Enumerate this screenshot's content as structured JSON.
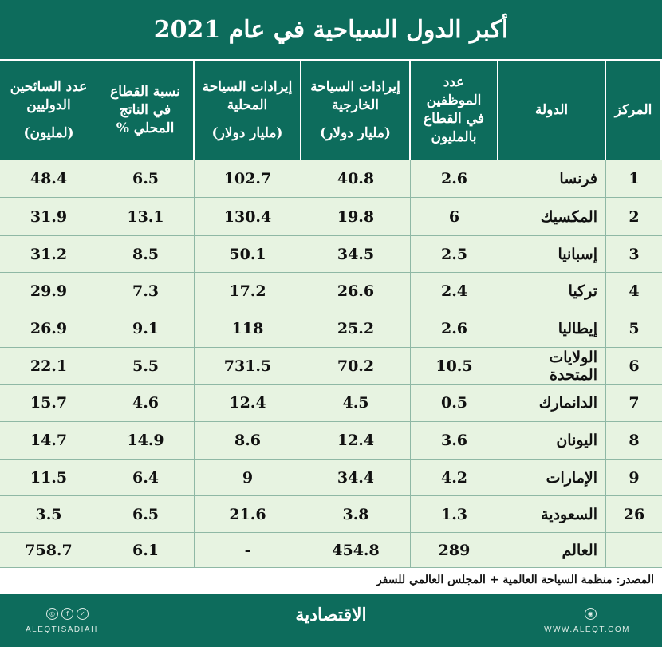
{
  "title": "أكبر الدول السياحية في عام 2021",
  "columns": {
    "rank": [
      "المركز"
    ],
    "country": [
      "الدولة"
    ],
    "employees": [
      "عدد",
      "الموظفين",
      "في القطاع",
      "بالمليون"
    ],
    "foreign_rev": [
      "إيرادات السياحة",
      "الخارجية"
    ],
    "foreign_rev_unit": "(مليار دولار)",
    "domestic_rev": [
      "إيرادات السياحة",
      "المحلية"
    ],
    "domestic_rev_unit": "(مليار دولار)",
    "gdp_share": [
      "نسبة القطاع",
      "في الناتج",
      "المحلي %"
    ],
    "tourists": [
      "عدد السائحين",
      "الدوليين"
    ],
    "tourists_unit": "(لمليون)"
  },
  "rows": [
    {
      "rank": "1",
      "country": "فرنسا",
      "employees": "2.6",
      "foreign_rev": "40.8",
      "domestic_rev": "102.7",
      "gdp_share": "6.5",
      "tourists": "48.4"
    },
    {
      "rank": "2",
      "country": "المكسيك",
      "employees": "6",
      "foreign_rev": "19.8",
      "domestic_rev": "130.4",
      "gdp_share": "13.1",
      "tourists": "31.9"
    },
    {
      "rank": "3",
      "country": "إسبانيا",
      "employees": "2.5",
      "foreign_rev": "34.5",
      "domestic_rev": "50.1",
      "gdp_share": "8.5",
      "tourists": "31.2"
    },
    {
      "rank": "4",
      "country": "تركيا",
      "employees": "2.4",
      "foreign_rev": "26.6",
      "domestic_rev": "17.2",
      "gdp_share": "7.3",
      "tourists": "29.9"
    },
    {
      "rank": "5",
      "country": "إيطاليا",
      "employees": "2.6",
      "foreign_rev": "25.2",
      "domestic_rev": "118",
      "gdp_share": "9.1",
      "tourists": "26.9"
    },
    {
      "rank": "6",
      "country": "الولايات المتحدة",
      "employees": "10.5",
      "foreign_rev": "70.2",
      "domestic_rev": "731.5",
      "gdp_share": "5.5",
      "tourists": "22.1"
    },
    {
      "rank": "7",
      "country": "الدانمارك",
      "employees": "0.5",
      "foreign_rev": "4.5",
      "domestic_rev": "12.4",
      "gdp_share": "4.6",
      "tourists": "15.7"
    },
    {
      "rank": "8",
      "country": "اليونان",
      "employees": "3.6",
      "foreign_rev": "12.4",
      "domestic_rev": "8.6",
      "gdp_share": "14.9",
      "tourists": "14.7"
    },
    {
      "rank": "9",
      "country": "الإمارات",
      "employees": "4.2",
      "foreign_rev": "34.4",
      "domestic_rev": "9",
      "gdp_share": "6.4",
      "tourists": "11.5"
    },
    {
      "rank": "26",
      "country": "السعودية",
      "employees": "1.3",
      "foreign_rev": "3.8",
      "domestic_rev": "21.6",
      "gdp_share": "6.5",
      "tourists": "3.5"
    },
    {
      "rank": "",
      "country": "العالم",
      "employees": "289",
      "foreign_rev": "454.8",
      "domestic_rev": "-",
      "gdp_share": "6.1",
      "tourists": "758.7"
    }
  ],
  "source": "المصدر: منظمة السياحة العالمية + المجلس العالمي للسفر",
  "footer": {
    "logo": "الاقتصادية",
    "handle": "ALEQTISADIAH",
    "website": "WWW.ALEQT.COM",
    "social_icons": [
      "twitter-icon",
      "facebook-icon",
      "instagram-icon"
    ],
    "website_icon": "globe-icon"
  },
  "colors": {
    "header_bg": "#0d6c5c",
    "row_bg": "#e7f3e1",
    "grid": "#8fb8a5"
  }
}
